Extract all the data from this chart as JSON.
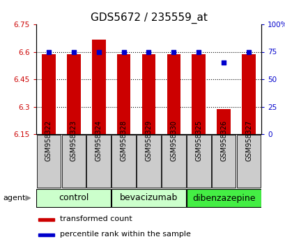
{
  "title": "GDS5672 / 235559_at",
  "samples": [
    "GSM958322",
    "GSM958323",
    "GSM958324",
    "GSM958328",
    "GSM958329",
    "GSM958330",
    "GSM958325",
    "GSM958326",
    "GSM958327"
  ],
  "bar_values": [
    6.585,
    6.585,
    6.665,
    6.585,
    6.585,
    6.585,
    6.585,
    6.285,
    6.585
  ],
  "percentile_values": [
    75,
    75,
    75,
    75,
    75,
    75,
    75,
    65,
    75
  ],
  "bar_bottom": 6.15,
  "ylim_left": [
    6.15,
    6.75
  ],
  "ylim_right": [
    0,
    100
  ],
  "yticks_left": [
    6.15,
    6.3,
    6.45,
    6.6,
    6.75
  ],
  "yticks_right": [
    0,
    25,
    50,
    75,
    100
  ],
  "ytick_labels_left": [
    "6.15",
    "6.3",
    "6.45",
    "6.6",
    "6.75"
  ],
  "ytick_labels_right": [
    "0",
    "25",
    "50",
    "75",
    "100%"
  ],
  "bar_color": "#cc0000",
  "dot_color": "#0000cc",
  "sample_box_color": "#cccccc",
  "group_configs": [
    {
      "label": "control",
      "start": 0,
      "end": 3,
      "color": "#ccffcc"
    },
    {
      "label": "bevacizumab",
      "start": 3,
      "end": 6,
      "color": "#ccffcc"
    },
    {
      "label": "dibenzazepine",
      "start": 6,
      "end": 9,
      "color": "#44ee44"
    }
  ],
  "agent_label": "agent",
  "legend_bar_label": "transformed count",
  "legend_dot_label": "percentile rank within the sample",
  "bar_width": 0.55,
  "dot_size": 25,
  "title_fontsize": 11,
  "tick_fontsize": 7.5,
  "sample_fontsize": 7,
  "group_fontsize": 9,
  "legend_fontsize": 8,
  "agent_fontsize": 8,
  "grid_yticks": [
    6.3,
    6.45,
    6.6
  ]
}
